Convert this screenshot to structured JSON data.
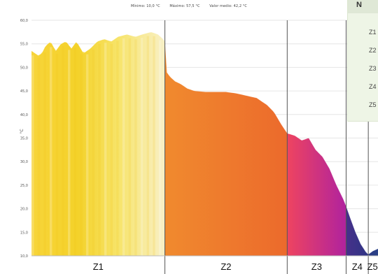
{
  "stats": {
    "min_label": "Mínimo: 10,0 °C",
    "max_label": "Máximo: 57,5 °C",
    "avg_label": "Valor medio: 42,2 °C"
  },
  "legend": {
    "title": "N",
    "items": [
      "Z1",
      "Z2",
      "Z3",
      "Z4",
      "Z5"
    ]
  },
  "chart_data": {
    "type": "area",
    "title": "",
    "xlabel": "",
    "ylabel": "°C",
    "ylim": [
      10,
      60
    ],
    "yticks": [
      "10,0",
      "15,0",
      "20,0",
      "25,0",
      "30,0",
      "35,0",
      "40,0",
      "45,0",
      "50,0",
      "55,0",
      "60,0"
    ],
    "grid": true,
    "zones": [
      {
        "name": "Z1",
        "start": 0,
        "end": 0.385
      },
      {
        "name": "Z2",
        "start": 0.385,
        "end": 0.738
      },
      {
        "name": "Z3",
        "start": 0.738,
        "end": 0.908
      },
      {
        "name": "Z4",
        "start": 0.908,
        "end": 0.972
      },
      {
        "name": "Z5",
        "start": 0.972,
        "end": 1.0
      }
    ],
    "profile": [
      [
        0.0,
        53.5
      ],
      [
        0.01,
        53.0
      ],
      [
        0.02,
        52.5
      ],
      [
        0.03,
        53.0
      ],
      [
        0.04,
        54.5
      ],
      [
        0.055,
        55.5
      ],
      [
        0.07,
        53.5
      ],
      [
        0.085,
        55.0
      ],
      [
        0.1,
        55.5
      ],
      [
        0.115,
        54.0
      ],
      [
        0.13,
        55.5
      ],
      [
        0.15,
        53.0
      ],
      [
        0.17,
        54.0
      ],
      [
        0.19,
        55.5
      ],
      [
        0.21,
        56.0
      ],
      [
        0.23,
        55.5
      ],
      [
        0.25,
        56.5
      ],
      [
        0.275,
        57.0
      ],
      [
        0.3,
        56.5
      ],
      [
        0.32,
        57.0
      ],
      [
        0.345,
        57.5
      ],
      [
        0.365,
        57.0
      ],
      [
        0.38,
        56.0
      ],
      [
        0.385,
        55.5
      ],
      [
        0.39,
        49.0
      ],
      [
        0.4,
        48.0
      ],
      [
        0.415,
        47.0
      ],
      [
        0.43,
        46.5
      ],
      [
        0.45,
        45.5
      ],
      [
        0.47,
        45.0
      ],
      [
        0.5,
        44.8
      ],
      [
        0.53,
        44.8
      ],
      [
        0.56,
        44.8
      ],
      [
        0.59,
        44.5
      ],
      [
        0.62,
        44.0
      ],
      [
        0.65,
        43.5
      ],
      [
        0.68,
        42.0
      ],
      [
        0.7,
        40.5
      ],
      [
        0.72,
        38.0
      ],
      [
        0.738,
        36.0
      ],
      [
        0.76,
        35.5
      ],
      [
        0.78,
        34.5
      ],
      [
        0.8,
        35.0
      ],
      [
        0.82,
        32.5
      ],
      [
        0.84,
        31.0
      ],
      [
        0.86,
        28.5
      ],
      [
        0.88,
        25.0
      ],
      [
        0.9,
        22.0
      ],
      [
        0.908,
        20.5
      ],
      [
        0.92,
        18.0
      ],
      [
        0.935,
        15.0
      ],
      [
        0.95,
        12.5
      ],
      [
        0.965,
        10.8
      ],
      [
        0.972,
        10.3
      ],
      [
        0.985,
        11.0
      ],
      [
        1.0,
        11.5
      ]
    ]
  },
  "colors": {
    "z1_a": "#fde26a",
    "z1_b": "#f6d22e",
    "z1_c": "#f8efbb",
    "z2_a": "#f07a26",
    "z2_b": "#ee6a2a",
    "z3_a": "#ea3f6a",
    "z3_b": "#b9249b",
    "z4": "#3c2f86",
    "z5": "#2a3e86",
    "grid": "#e6e6e6",
    "zone_line": "#555555"
  }
}
